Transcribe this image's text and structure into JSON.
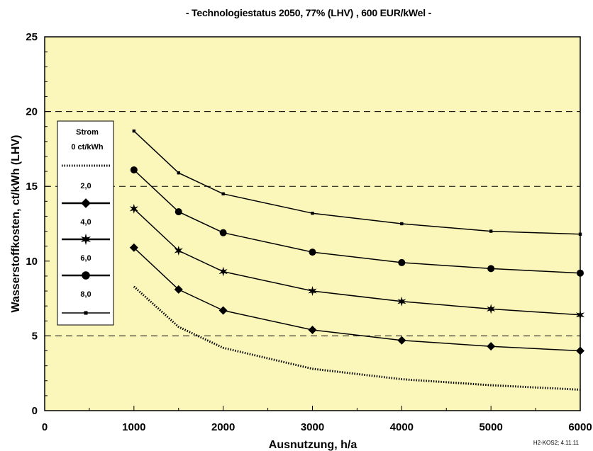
{
  "chart_data": {
    "type": "line",
    "title": "- Technologiestatus 2050, 77% (LHV) , 600 EUR/kWel -",
    "xlabel": "Ausnutzung, h/a",
    "ylabel": "Wasserstoffkosten, ct/kWh (LHV)",
    "xlim": [
      0,
      6000
    ],
    "ylim": [
      0,
      25
    ],
    "x_ticks": [
      "0",
      "1000",
      "2000",
      "3000",
      "4000",
      "5000",
      "6000"
    ],
    "y_ticks": [
      "0",
      "5",
      "10",
      "15",
      "20",
      "25"
    ],
    "grid": "horizontal dashed at 5, 15, 20",
    "background": "#fbf6b9",
    "x": [
      1000,
      1500,
      2000,
      3000,
      4000,
      5000,
      6000
    ],
    "legend": {
      "title_line1": "Strom",
      "title_line2": "0 ct/kWh",
      "placement": "left-middle"
    },
    "series": [
      {
        "name": "0 ct/kWh",
        "style": "dotted",
        "marker": "none",
        "values": [
          8.3,
          5.6,
          4.2,
          2.8,
          2.1,
          1.7,
          1.4
        ]
      },
      {
        "name": "2,0",
        "style": "solid",
        "marker": "diamond",
        "values": [
          10.9,
          8.1,
          6.7,
          5.4,
          4.7,
          4.3,
          4.0
        ]
      },
      {
        "name": "4,0",
        "style": "solid",
        "marker": "star",
        "values": [
          13.5,
          10.7,
          9.3,
          8.0,
          7.3,
          6.8,
          6.4
        ]
      },
      {
        "name": "6,0",
        "style": "solid",
        "marker": "circle",
        "values": [
          16.1,
          13.3,
          11.9,
          10.6,
          9.9,
          9.5,
          9.2
        ]
      },
      {
        "name": "8,0",
        "style": "solid",
        "marker": "square",
        "values": [
          18.7,
          15.9,
          14.5,
          13.2,
          12.5,
          12.0,
          11.8
        ]
      }
    ],
    "footnote": "H2-KOS2; 4.11.11"
  }
}
